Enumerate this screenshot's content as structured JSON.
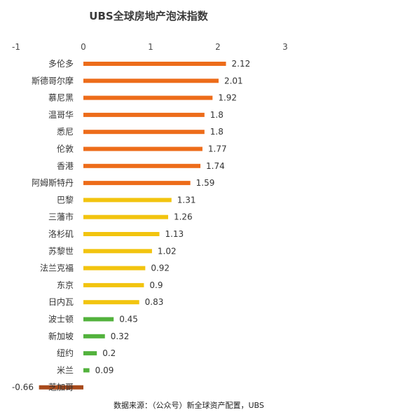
{
  "chart_data": {
    "type": "bar",
    "orientation": "horizontal",
    "title": "UBS全球房地产泡沫指数",
    "xlim": [
      -1,
      3
    ],
    "x_ticks": [
      "-1",
      "0",
      "1",
      "2",
      "3"
    ],
    "categories": [
      "多伦多",
      "斯德哥尔摩",
      "慕尼黑",
      "温哥华",
      "悉尼",
      "伦敦",
      "香港",
      "阿姆斯特丹",
      "巴黎",
      "三藩市",
      "洛杉矶",
      "苏黎世",
      "法兰克福",
      "东京",
      "日内瓦",
      "波士顿",
      "新加坡",
      "纽约",
      "米兰",
      "芝加哥"
    ],
    "values": [
      2.12,
      2.01,
      1.92,
      1.8,
      1.8,
      1.77,
      1.74,
      1.59,
      1.31,
      1.26,
      1.13,
      1.02,
      0.92,
      0.9,
      0.83,
      0.45,
      0.32,
      0.2,
      0.09,
      -0.66
    ],
    "value_labels": [
      "2.12",
      "2.01",
      "1.92",
      "1.8",
      "1.8",
      "1.77",
      "1.74",
      "1.59",
      "1.31",
      "1.26",
      "1.13",
      "1.02",
      "0.92",
      "0.9",
      "0.83",
      "0.45",
      "0.32",
      "0.2",
      "0.09",
      "-0.66"
    ],
    "bar_colors": [
      "#ED6C1A",
      "#ED6C1A",
      "#ED6C1A",
      "#ED6C1A",
      "#ED6C1A",
      "#ED6C1A",
      "#ED6C1A",
      "#ED6C1A",
      "#F2C40F",
      "#F2C40F",
      "#F2C40F",
      "#F2C40F",
      "#F2C40F",
      "#F2C40F",
      "#F2C40F",
      "#52B23C",
      "#52B23C",
      "#52B23C",
      "#52B23C",
      "#A84A1B"
    ],
    "grid": false,
    "legend": "none"
  },
  "footnote": "数据来源：（公众号）新全球资产配置，UBS"
}
